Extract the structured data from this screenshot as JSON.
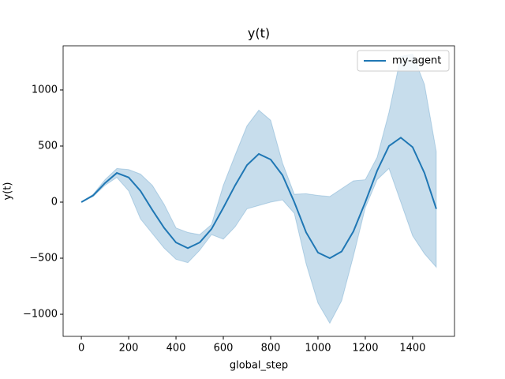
{
  "chart_data": {
    "type": "line",
    "title": "y(t)",
    "x_label": "global_step",
    "y_label": "y(t)",
    "x": [
      0,
      50,
      100,
      150,
      200,
      250,
      300,
      350,
      400,
      450,
      500,
      550,
      600,
      650,
      700,
      750,
      800,
      850,
      900,
      950,
      1000,
      1050,
      1100,
      1150,
      1200,
      1250,
      1300,
      1350,
      1400,
      1450,
      1500
    ],
    "series": [
      {
        "name": "my-agent",
        "color": "#1f77b4",
        "band_color": "#1f77b4",
        "values": [
          0,
          60,
          170,
          260,
          220,
          100,
          -70,
          -230,
          -360,
          -410,
          -360,
          -240,
          -50,
          150,
          330,
          430,
          380,
          240,
          0,
          -270,
          -450,
          -500,
          -440,
          -260,
          0,
          280,
          500,
          575,
          490,
          260,
          -60
        ],
        "upper": [
          0,
          70,
          200,
          300,
          290,
          250,
          150,
          -20,
          -230,
          -270,
          -290,
          -200,
          150,
          420,
          680,
          820,
          730,
          350,
          70,
          75,
          60,
          50,
          120,
          190,
          200,
          400,
          800,
          1300,
          1320,
          1050,
          450
        ],
        "lower": [
          0,
          50,
          150,
          220,
          100,
          -150,
          -280,
          -410,
          -510,
          -540,
          -430,
          -290,
          -330,
          -220,
          -60,
          -30,
          0,
          20,
          -100,
          -550,
          -900,
          -1080,
          -880,
          -480,
          -50,
          200,
          300,
          0,
          -300,
          -460,
          -580
        ]
      }
    ],
    "xlim": [
      -77,
      1577
    ],
    "xticks": [
      0,
      200,
      400,
      600,
      800,
      1000,
      1200,
      1400
    ],
    "ylim": [
      -1197,
      1394
    ],
    "yticks": [
      {
        "value": -1000,
        "label": "−1000"
      },
      {
        "value": -500,
        "label": "−500"
      },
      0,
      500,
      1000
    ],
    "legend": "upper right"
  }
}
